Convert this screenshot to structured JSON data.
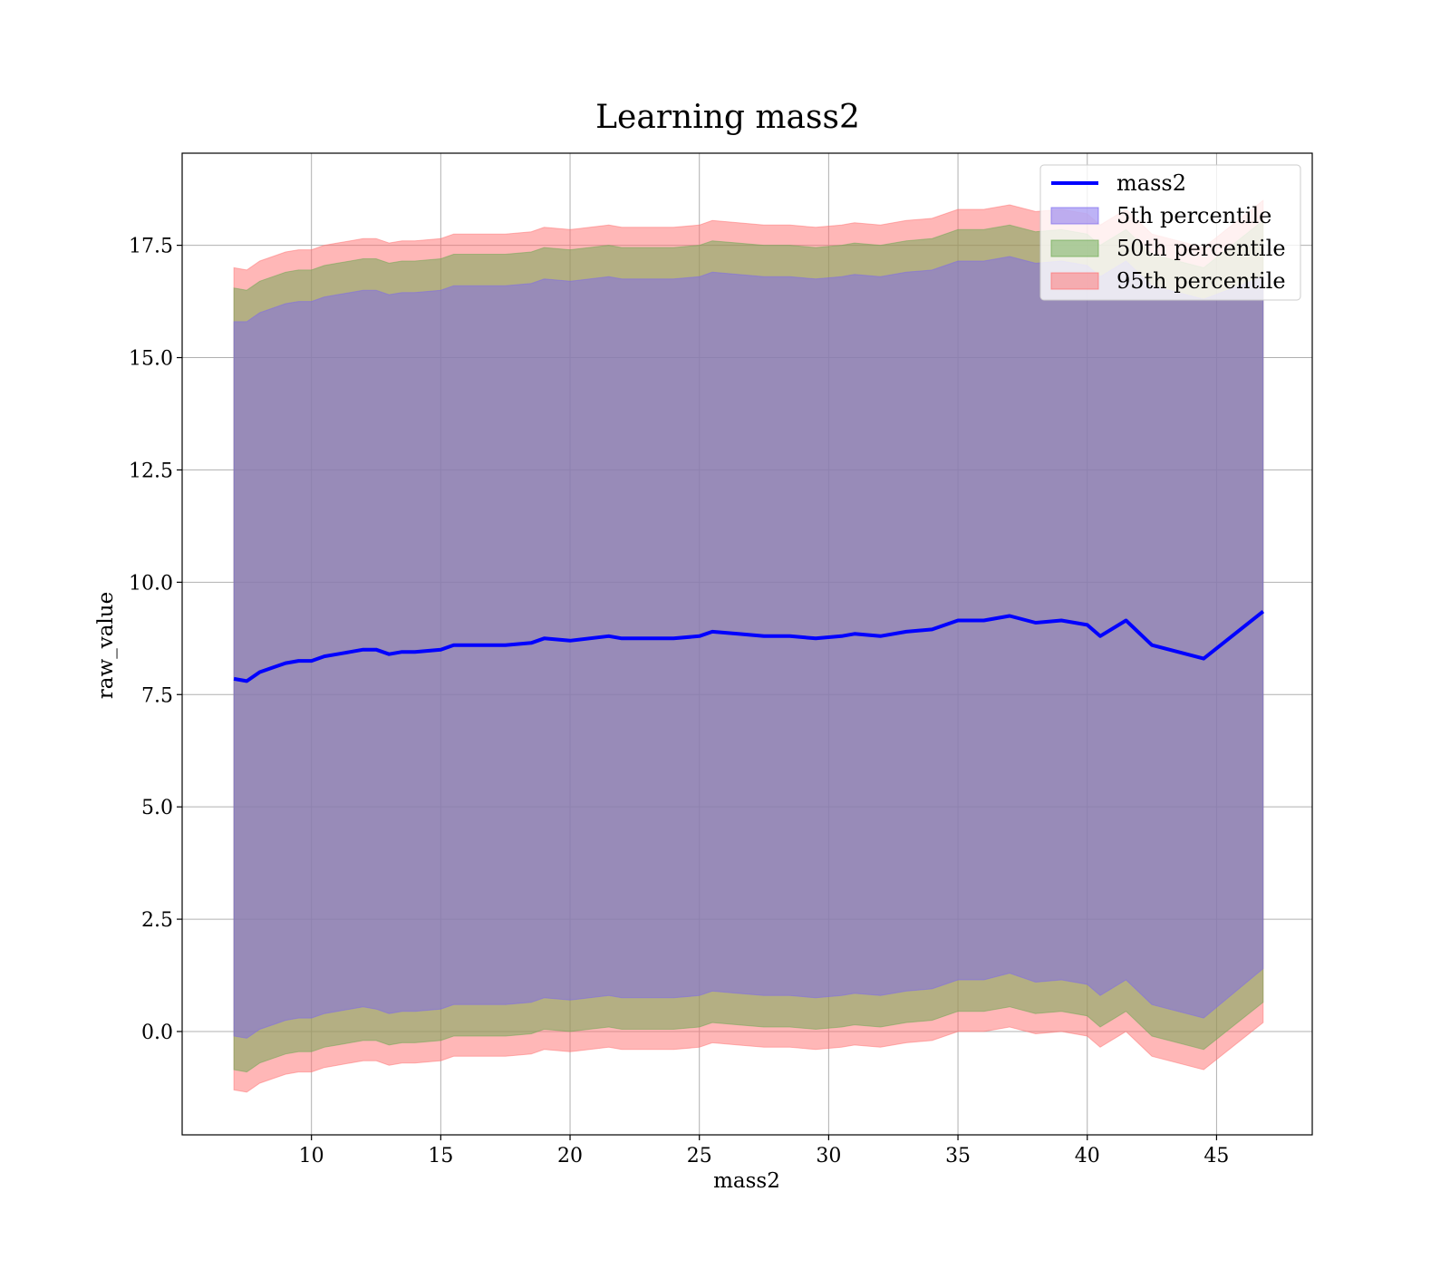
{
  "chart_data": {
    "type": "area",
    "title": "Learning mass2",
    "xlabel": "mass2",
    "ylabel": "raw_value",
    "xlim": [
      5.0,
      48.7
    ],
    "ylim": [
      -2.3,
      19.55
    ],
    "xticks": [
      10,
      15,
      20,
      25,
      30,
      35,
      40,
      45
    ],
    "xtick_labels": [
      "10",
      "15",
      "20",
      "25",
      "30",
      "35",
      "40",
      "45"
    ],
    "yticks": [
      0.0,
      2.5,
      5.0,
      7.5,
      10.0,
      12.5,
      15.0,
      17.5
    ],
    "ytick_labels": [
      "0.0",
      "2.5",
      "5.0",
      "7.5",
      "10.0",
      "12.5",
      "15.0",
      "17.5"
    ],
    "grid": true,
    "legend_position": "top-right",
    "x": [
      7.0,
      7.5,
      8.0,
      8.5,
      9.0,
      9.5,
      10.0,
      10.5,
      11.0,
      11.5,
      12.0,
      12.5,
      13.0,
      13.5,
      14.0,
      15.0,
      15.5,
      16.5,
      17.5,
      18.5,
      19.0,
      20.0,
      21.5,
      22.0,
      23.0,
      24.0,
      25.0,
      25.5,
      26.5,
      27.5,
      28.5,
      29.5,
      30.5,
      31.0,
      32.0,
      33.0,
      34.0,
      35.0,
      36.0,
      37.0,
      38.0,
      39.0,
      40.0,
      40.5,
      41.5,
      42.5,
      44.5,
      46.8
    ],
    "series": [
      {
        "name": "mass2",
        "kind": "line",
        "color": "#0000ff",
        "values": [
          7.85,
          7.8,
          8.0,
          8.1,
          8.2,
          8.25,
          8.25,
          8.35,
          8.4,
          8.45,
          8.5,
          8.5,
          8.4,
          8.45,
          8.45,
          8.5,
          8.6,
          8.6,
          8.6,
          8.65,
          8.75,
          8.7,
          8.8,
          8.75,
          8.75,
          8.75,
          8.8,
          8.9,
          8.85,
          8.8,
          8.8,
          8.75,
          8.8,
          8.85,
          8.8,
          8.9,
          8.95,
          9.15,
          9.15,
          9.25,
          9.1,
          9.15,
          9.05,
          8.8,
          9.15,
          8.6,
          8.3,
          9.35
        ]
      },
      {
        "name": "5th percentile",
        "kind": "band",
        "color": "#7b68ee",
        "lower": [
          -0.1,
          -0.15,
          0.05,
          0.15,
          0.25,
          0.3,
          0.3,
          0.4,
          0.45,
          0.5,
          0.55,
          0.5,
          0.4,
          0.45,
          0.45,
          0.5,
          0.6,
          0.6,
          0.6,
          0.65,
          0.75,
          0.7,
          0.8,
          0.75,
          0.75,
          0.75,
          0.8,
          0.9,
          0.85,
          0.8,
          0.8,
          0.75,
          0.8,
          0.85,
          0.8,
          0.9,
          0.95,
          1.15,
          1.15,
          1.3,
          1.1,
          1.15,
          1.05,
          0.8,
          1.15,
          0.6,
          0.3,
          1.4
        ],
        "upper": [
          15.8,
          15.8,
          16.0,
          16.1,
          16.2,
          16.25,
          16.25,
          16.35,
          16.4,
          16.45,
          16.5,
          16.5,
          16.4,
          16.45,
          16.45,
          16.5,
          16.6,
          16.6,
          16.6,
          16.65,
          16.75,
          16.7,
          16.8,
          16.75,
          16.75,
          16.75,
          16.8,
          16.9,
          16.85,
          16.8,
          16.8,
          16.75,
          16.8,
          16.85,
          16.8,
          16.9,
          16.95,
          17.15,
          17.15,
          17.25,
          17.1,
          17.15,
          17.05,
          16.8,
          17.15,
          16.6,
          16.3,
          16.8
        ]
      },
      {
        "name": "50th percentile",
        "kind": "band",
        "color": "#6aa84f",
        "lower": [
          -0.85,
          -0.9,
          -0.7,
          -0.6,
          -0.5,
          -0.45,
          -0.45,
          -0.35,
          -0.3,
          -0.25,
          -0.2,
          -0.2,
          -0.3,
          -0.25,
          -0.25,
          -0.2,
          -0.1,
          -0.1,
          -0.1,
          -0.05,
          0.05,
          0.0,
          0.1,
          0.05,
          0.05,
          0.05,
          0.1,
          0.2,
          0.15,
          0.1,
          0.1,
          0.05,
          0.1,
          0.15,
          0.1,
          0.2,
          0.25,
          0.45,
          0.45,
          0.55,
          0.4,
          0.45,
          0.35,
          0.1,
          0.45,
          -0.1,
          -0.4,
          0.65
        ],
        "upper": [
          16.55,
          16.5,
          16.7,
          16.8,
          16.9,
          16.95,
          16.95,
          17.05,
          17.1,
          17.15,
          17.2,
          17.2,
          17.1,
          17.15,
          17.15,
          17.2,
          17.3,
          17.3,
          17.3,
          17.35,
          17.45,
          17.4,
          17.5,
          17.45,
          17.45,
          17.45,
          17.5,
          17.6,
          17.55,
          17.5,
          17.5,
          17.45,
          17.5,
          17.55,
          17.5,
          17.6,
          17.65,
          17.85,
          17.85,
          17.95,
          17.8,
          17.85,
          17.75,
          17.5,
          17.85,
          17.3,
          17.0,
          18.05
        ]
      },
      {
        "name": "95th percentile",
        "kind": "band",
        "color": "#ff6f6f",
        "lower": [
          -1.3,
          -1.35,
          -1.15,
          -1.05,
          -0.95,
          -0.9,
          -0.9,
          -0.8,
          -0.75,
          -0.7,
          -0.65,
          -0.65,
          -0.75,
          -0.7,
          -0.7,
          -0.65,
          -0.55,
          -0.55,
          -0.55,
          -0.5,
          -0.4,
          -0.45,
          -0.35,
          -0.4,
          -0.4,
          -0.4,
          -0.35,
          -0.25,
          -0.3,
          -0.35,
          -0.35,
          -0.4,
          -0.35,
          -0.3,
          -0.35,
          -0.25,
          -0.2,
          0.0,
          0.0,
          0.1,
          -0.05,
          0.0,
          -0.1,
          -0.35,
          0.0,
          -0.55,
          -0.85,
          0.2
        ],
        "upper": [
          17.0,
          16.95,
          17.15,
          17.25,
          17.35,
          17.4,
          17.4,
          17.5,
          17.55,
          17.6,
          17.65,
          17.65,
          17.55,
          17.6,
          17.6,
          17.65,
          17.75,
          17.75,
          17.75,
          17.8,
          17.9,
          17.85,
          17.95,
          17.9,
          17.9,
          17.9,
          17.95,
          18.05,
          18.0,
          17.95,
          17.95,
          17.9,
          17.95,
          18.0,
          17.95,
          18.05,
          18.1,
          18.3,
          18.3,
          18.4,
          18.25,
          18.3,
          18.2,
          17.95,
          18.3,
          17.75,
          17.45,
          18.5
        ]
      }
    ]
  }
}
